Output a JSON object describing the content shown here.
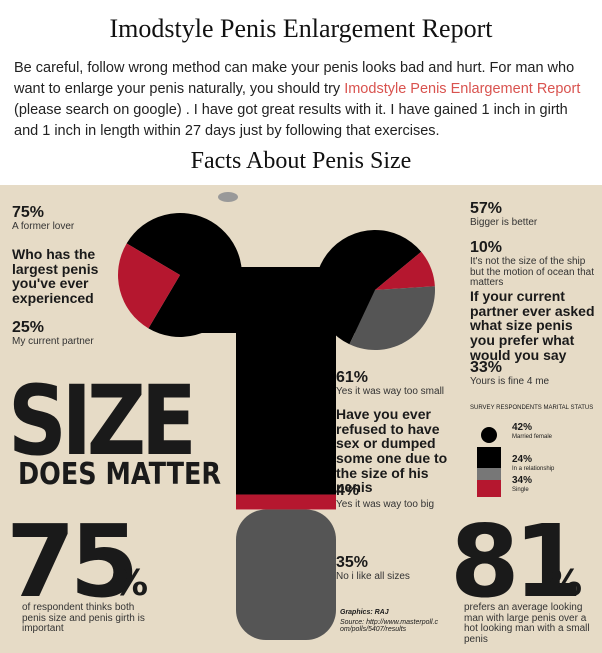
{
  "header": {
    "title": "Imodstyle Penis Enlargement Report"
  },
  "intro": {
    "before": "Be careful, follow wrong method can make your penis looks bad and hurt. For man who want to enlarge your penis naturally, you should try ",
    "link": "Imodstyle Penis Enlargement Report",
    "after": " (please search on google) . I have got great results with it. I have gained 1 inch in girth and 1 inch in length within 27 days just by following that exercises."
  },
  "section_title": "Facts About Penis Size",
  "infographic": {
    "q1": {
      "question": "Who has the largest penis you've ever experienced",
      "answers": [
        {
          "value": 75,
          "label": "75%",
          "caption": "A former lover"
        },
        {
          "value": 25,
          "label": "25%",
          "caption": "My current partner"
        }
      ]
    },
    "q2": {
      "question": "If your current partner ever asked what size penis you prefer what would you say",
      "answers": [
        {
          "value": 57,
          "label": "57%",
          "caption": "Bigger is better"
        },
        {
          "value": 10,
          "label": "10%",
          "caption": "It's not the size of the ship but the motion of ocean that matters"
        },
        {
          "value": 33,
          "label": "33%",
          "caption": "Yours is fine 4 me"
        }
      ]
    },
    "q3": {
      "question": "Have you ever refused to have sex or dumped some one due to the size of his penis",
      "answers": [
        {
          "value": 61,
          "label": "61%",
          "caption": "Yes it was way too small"
        },
        {
          "value": 4,
          "label": "4%",
          "caption": "Yes it was way too big"
        },
        {
          "value": 35,
          "label": "35%",
          "caption": "No i like all sizes"
        }
      ]
    },
    "headline": "SIZE",
    "subhead": "DOES MATTER",
    "marital": {
      "title": "SURVEY RESPONDENTS MARITAL STATUS",
      "groups": [
        {
          "value": 42,
          "label": "42%",
          "caption": "Married female"
        },
        {
          "value": 24,
          "label": "24%",
          "caption": "In a relationship"
        },
        {
          "value": 34,
          "label": "34%",
          "caption": "Single"
        }
      ]
    },
    "stat1": {
      "number": "75",
      "unit": "%",
      "caption": "of respondent thinks both penis size and penis girth is important"
    },
    "stat2": {
      "number": "81",
      "unit": "%",
      "caption": "prefers an average looking man with large penis over a hot looking man with a small penis"
    },
    "credits": {
      "graphics": "Graphics: RAJ",
      "source": "Source: http://www.masterpoll.com/polls/5407/results"
    }
  }
}
